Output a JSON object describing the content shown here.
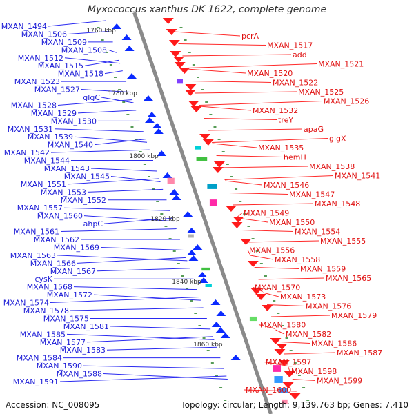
{
  "title": "Myxococcus xanthus DK 1622, complete genome",
  "footer": {
    "accession": "Accession: NC_008095",
    "topology": "Topology: circular; Length: 9,139,763 bp; Genes: 7,410"
  },
  "colors": {
    "axis": "#8a8a8a",
    "left_label": "#1b1bd6",
    "right_label": "#e01010",
    "leader_left": "#2a2af0",
    "leader_right": "#ff2a2a",
    "tick_mark": "#1f7a1f"
  },
  "kbp_labels": [
    "1760 kbp",
    "1780 kbp",
    "1800 kbp",
    "1820 kbp",
    "1840 kbp",
    "1860 kbp"
  ],
  "left_labels": [
    "MXAN_1494",
    "MXAN_1506",
    "MXAN_1509",
    "MXAN_1508",
    "MXAN_1512",
    "MXAN_1515",
    "MXAN_1518",
    "MXAN_1523",
    "MXAN_1527",
    "glgC",
    "MXAN_1528",
    "MXAN_1529",
    "MXAN_1530",
    "MXAN_1531",
    "MXAN_1539",
    "MXAN_1540",
    "MXAN_1542",
    "MXAN_1544",
    "MXAN_1543",
    "MXAN_1545",
    "MXAN_1551",
    "MXAN_1553",
    "MXAN_1552",
    "MXAN_1557",
    "MXAN_1560",
    "ahpC",
    "MXAN_1561",
    "MXAN_1562",
    "MXAN_1569",
    "MXAN_1563",
    "MXAN_1566",
    "MXAN_1567",
    "cysK",
    "MXAN_1568",
    "MXAN_1572",
    "MXAN_1574",
    "MXAN_1578",
    "MXAN_1575",
    "MXAN_1581",
    "MXAN_1585",
    "MXAN_1577",
    "MXAN_1583",
    "MXAN_1584",
    "MXAN_1590",
    "MXAN_1588",
    "MXAN_1591"
  ],
  "right_labels": [
    "pcrA",
    "MXAN_1517",
    "add",
    "MXAN_1521",
    "MXAN_1520",
    "MXAN_1522",
    "MXAN_1525",
    "MXAN_1526",
    "MXAN_1532",
    "treY",
    "apaG",
    "glgX",
    "MXAN_1535",
    "hemH",
    "MXAN_1538",
    "MXAN_1541",
    "MXAN_1546",
    "MXAN_1547",
    "MXAN_1548",
    "MXAN_1549",
    "MXAN_1550",
    "MXAN_1554",
    "MXAN_1555",
    "MXAN_1556",
    "MXAN_1558",
    "MXAN_1559",
    "MXAN_1565",
    "MXAN_1570",
    "MXAN_1573",
    "MXAN_1576",
    "MXAN_1579",
    "MXAN_1580",
    "MXAN_1582",
    "MXAN_1586",
    "MXAN_1587",
    "MXAN_1597",
    "MXAN_1598",
    "MXAN_1599",
    "MXAN_1600"
  ]
}
